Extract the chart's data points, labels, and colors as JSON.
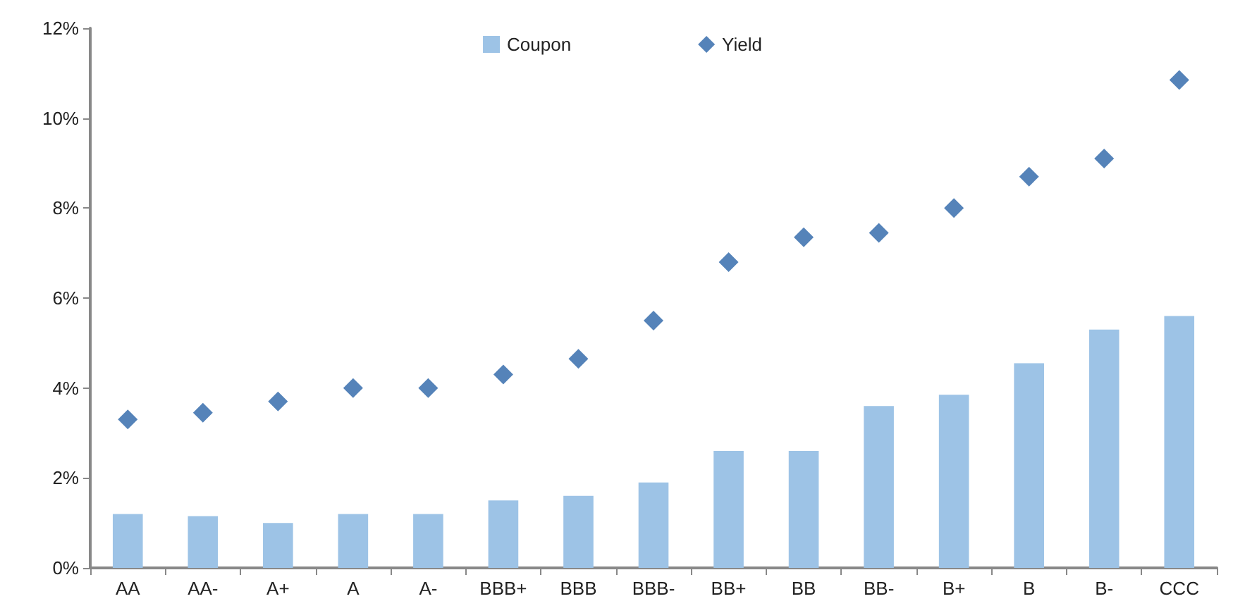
{
  "chart_data": {
    "type": "bar",
    "categories": [
      "AA",
      "AA-",
      "A+",
      "A",
      "A-",
      "BBB+",
      "BBB",
      "BBB-",
      "BB+",
      "BB",
      "BB-",
      "B+",
      "B",
      "B-",
      "CCC"
    ],
    "series": [
      {
        "name": "Coupon",
        "color": "#9dc3e6",
        "values": [
          1.2,
          1.15,
          1.0,
          1.2,
          1.2,
          1.5,
          1.6,
          1.9,
          2.6,
          2.6,
          3.6,
          3.85,
          4.55,
          5.3,
          5.6
        ]
      },
      {
        "name": "Yield",
        "type": "scatter",
        "color": "#2a64a8",
        "marker": "diamond",
        "values": [
          3.3,
          3.45,
          3.7,
          4.0,
          4.0,
          4.3,
          4.65,
          5.5,
          6.8,
          7.35,
          7.45,
          8.0,
          8.7,
          9.1,
          10.85
        ]
      }
    ],
    "ylim": [
      0,
      12
    ],
    "yticks": [
      {
        "value": 0,
        "label": "0%"
      },
      {
        "value": 2,
        "label": "2%"
      },
      {
        "value": 4,
        "label": "4%"
      },
      {
        "value": 6,
        "label": "6%"
      },
      {
        "value": 8,
        "label": "8%"
      },
      {
        "value": 10,
        "label": "10%"
      },
      {
        "value": 12,
        "label": "12%"
      }
    ],
    "grid": false,
    "legend": "top"
  }
}
